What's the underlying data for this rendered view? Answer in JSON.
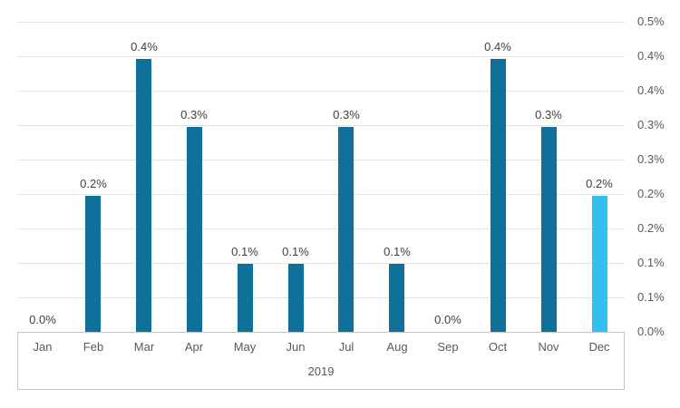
{
  "chart_data": {
    "type": "bar",
    "title": "",
    "xlabel": "",
    "ylabel": "",
    "group_label": "2019",
    "categories": [
      "Jan",
      "Feb",
      "Mar",
      "Apr",
      "May",
      "Jun",
      "Jul",
      "Aug",
      "Sep",
      "Oct",
      "Nov",
      "Dec"
    ],
    "values": [
      0.0,
      0.22,
      0.44,
      0.33,
      0.11,
      0.11,
      0.33,
      0.11,
      0.0,
      0.44,
      0.33,
      0.22
    ],
    "data_labels": [
      "0.0%",
      "0.2%",
      "0.4%",
      "0.3%",
      "0.1%",
      "0.1%",
      "0.3%",
      "0.1%",
      "0.0%",
      "0.4%",
      "0.3%",
      "0.2%"
    ],
    "y_ticks": [
      "0.5%",
      "0.4%",
      "0.4%",
      "0.3%",
      "0.3%",
      "0.2%",
      "0.2%",
      "0.1%",
      "0.1%",
      "0.0%"
    ],
    "ylim": [
      0,
      0.5
    ],
    "grid": true,
    "legend": false,
    "y_axis_side": "right",
    "bar_color": "#0d7199",
    "highlight_color": "#31c0f0",
    "highlight_index": 11,
    "label_color": "#404040",
    "axis_text_color": "#595959"
  }
}
